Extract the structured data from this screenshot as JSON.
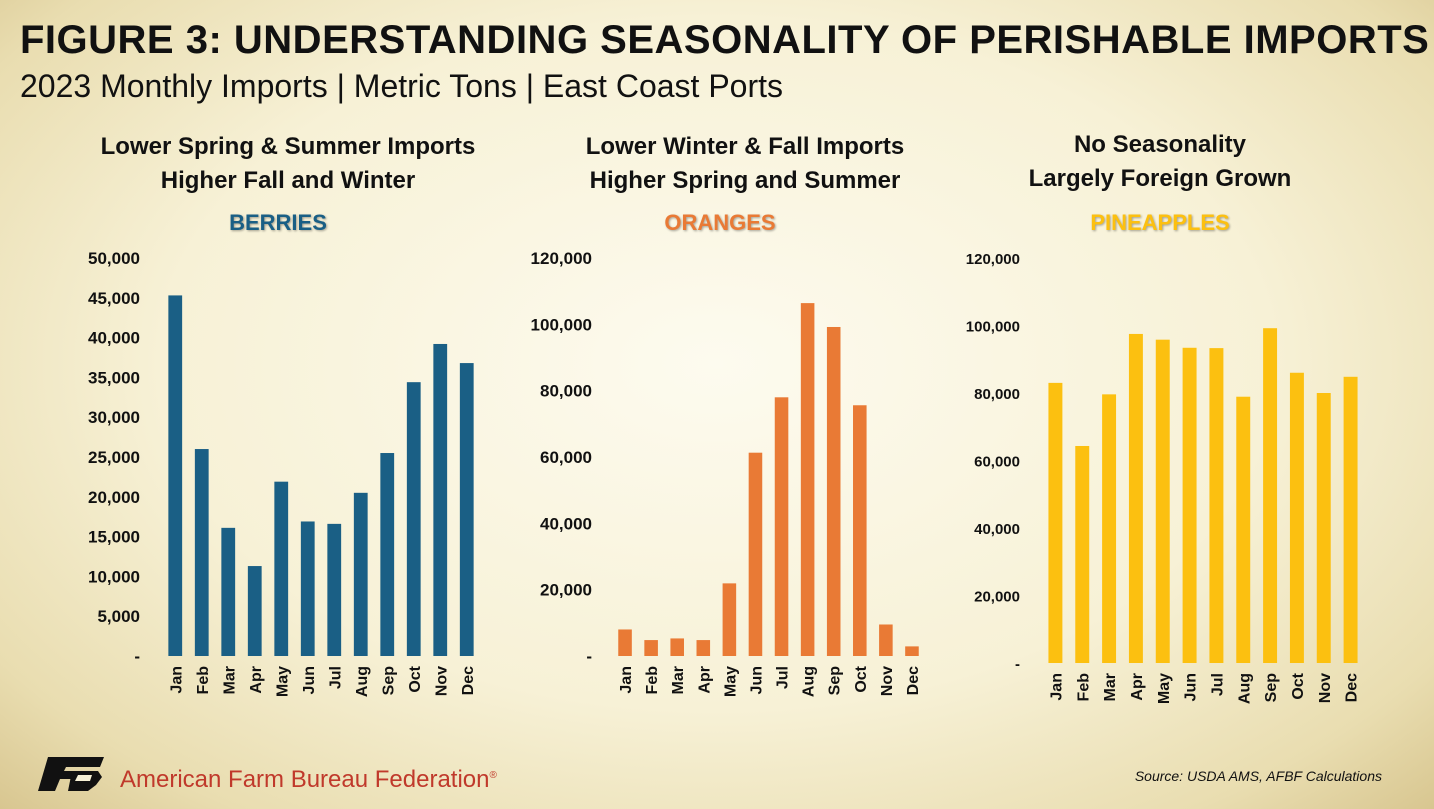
{
  "header": {
    "title": "FIGURE 3: UNDERSTANDING SEASONALITY OF PERISHABLE IMPORTS",
    "subtitle": "2023 Monthly Imports | Metric Tons | East Coast Ports"
  },
  "panels": [
    {
      "line1": "Lower Spring & Summer Imports",
      "line2": "Higher Fall and Winter",
      "series_label": "BERRIES"
    },
    {
      "line1": "Lower Winter & Fall Imports",
      "line2": "Higher Spring and Summer",
      "series_label": "ORANGES"
    },
    {
      "line1": "No Seasonality",
      "line2": "Largely Foreign Grown",
      "series_label": "PINEAPPLES"
    }
  ],
  "footer": {
    "org_name": "American Farm Bureau Federation",
    "source": "Source: USDA AMS, AFBF Calculations"
  },
  "chart_data": [
    {
      "type": "bar",
      "title": "BERRIES",
      "categories": [
        "Jan",
        "Feb",
        "Mar",
        "Apr",
        "May",
        "Jun",
        "Jul",
        "Aug",
        "Sep",
        "Oct",
        "Nov",
        "Dec"
      ],
      "values": [
        45300,
        26000,
        16100,
        11300,
        21900,
        16900,
        16600,
        20500,
        25500,
        34400,
        39200,
        36800
      ],
      "ylim": [
        0,
        50000
      ],
      "yticks": [
        "-",
        "5,000",
        "10,000",
        "15,000",
        "20,000",
        "25,000",
        "30,000",
        "35,000",
        "40,000",
        "45,000",
        "50,000"
      ],
      "color": "#1a5f85",
      "grid": false
    },
    {
      "type": "bar",
      "title": "ORANGES",
      "categories": [
        "Jan",
        "Feb",
        "Mar",
        "Apr",
        "May",
        "Jun",
        "Jul",
        "Aug",
        "Sep",
        "Oct",
        "Nov",
        "Dec"
      ],
      "values": [
        8000,
        4800,
        5300,
        4800,
        21900,
        61300,
        78000,
        106400,
        99200,
        75600,
        9500,
        2900
      ],
      "ylim": [
        0,
        120000
      ],
      "yticks": [
        "-",
        "20,000",
        "40,000",
        "60,000",
        "80,000",
        "100,000",
        "120,000"
      ],
      "color": "#e97a35",
      "grid": false
    },
    {
      "type": "bar",
      "title": "PINEAPPLES",
      "categories": [
        "Jan",
        "Feb",
        "Mar",
        "Apr",
        "May",
        "Jun",
        "Jul",
        "Aug",
        "Sep",
        "Oct",
        "Nov",
        "Dec"
      ],
      "values": [
        83000,
        64300,
        79600,
        97500,
        95800,
        93400,
        93300,
        78900,
        99200,
        86000,
        80000,
        84800
      ],
      "ylim": [
        0,
        120000
      ],
      "yticks": [
        "-",
        "20,000",
        "40,000",
        "60,000",
        "80,000",
        "100,000",
        "120,000"
      ],
      "color": "#fcc010",
      "grid": false
    }
  ]
}
